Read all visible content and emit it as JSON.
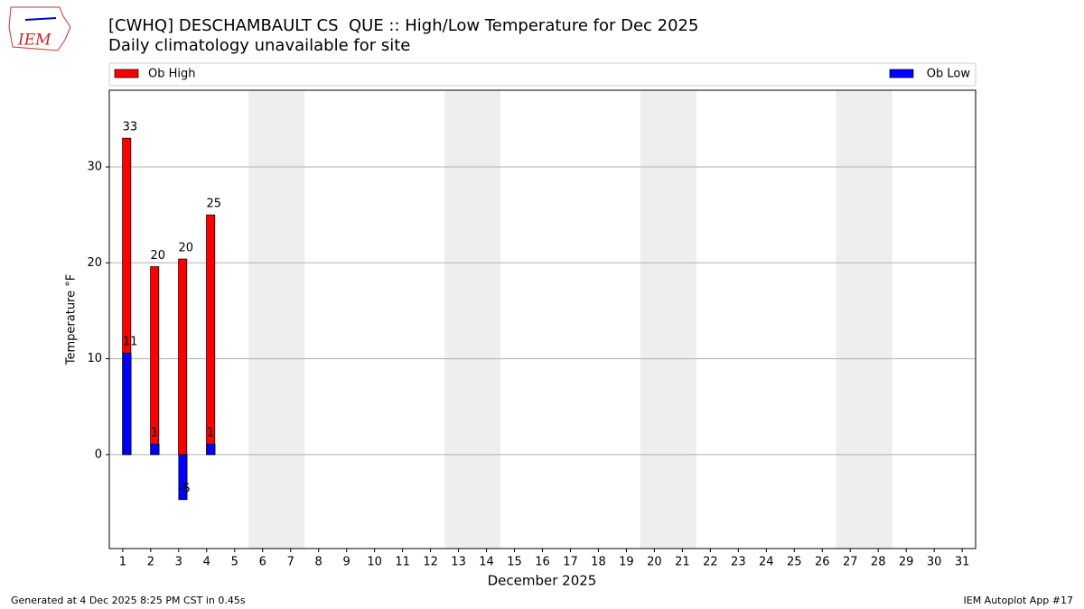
{
  "chart_data": {
    "type": "bar",
    "title": "[CWHQ] DESCHAMBAULT CS  QUE :: High/Low Temperature for Dec 2025",
    "subtitle": "Daily climatology unavailable for site",
    "logo_text": "IEM",
    "ylabel": "Temperature °F",
    "xlabel": "December 2025",
    "footer_left": "Generated at 4 Dec 2025 8:25 PM CST in 0.45s",
    "footer_right": "IEM Autoplot App #17",
    "x": [
      1,
      2,
      3,
      4
    ],
    "series": [
      {
        "name": "Ob High",
        "color": "#ff0000",
        "values": [
          33,
          19.6,
          20.4,
          25
        ],
        "value_labels": [
          "33",
          "20",
          "20",
          "25"
        ]
      },
      {
        "name": "Ob Low",
        "color": "#0000ff",
        "values": [
          10.6,
          1.1,
          -4.7,
          1.1
        ],
        "value_labels": [
          "11",
          "1",
          "-5",
          "1"
        ]
      }
    ],
    "xlim": [
      0.52,
      31.48
    ],
    "xticks": [
      1,
      2,
      3,
      4,
      5,
      6,
      7,
      8,
      9,
      10,
      11,
      12,
      13,
      14,
      15,
      16,
      17,
      18,
      19,
      20,
      21,
      22,
      23,
      24,
      25,
      26,
      27,
      28,
      29,
      30,
      31
    ],
    "ylim": [
      -9.8,
      38
    ],
    "yticks": [
      0,
      10,
      20,
      30
    ],
    "grid": true,
    "shaded_days": [
      [
        6,
        7
      ],
      [
        13,
        14
      ],
      [
        20,
        21
      ],
      [
        27,
        28
      ]
    ],
    "shade_color": "#eeeeee"
  }
}
